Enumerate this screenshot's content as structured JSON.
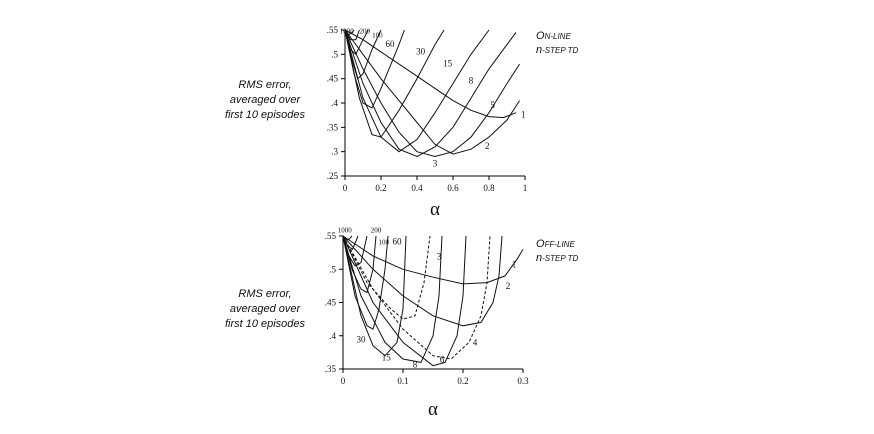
{
  "chart_data": [
    {
      "type": "line",
      "title_lines": [
        [
          "O",
          "N-LINE"
        ],
        [
          "n",
          "-STEP",
          " TD"
        ]
      ],
      "ylabel_lines": [
        "RMS error,",
        "averaged over",
        "first 10 episodes"
      ],
      "xlabel": "α",
      "xlim": [
        0,
        1
      ],
      "ylim": [
        0.25,
        0.55
      ],
      "xticks": [
        "0",
        "0.2",
        "0.4",
        "0.6",
        "0.8",
        "1"
      ],
      "xtick_values": [
        0,
        0.2,
        0.4,
        0.6,
        0.8,
        1
      ],
      "yticks": [
        ".25",
        ".3",
        ".35",
        ".4",
        ".45",
        ".5",
        ".55"
      ],
      "ytick_values": [
        0.25,
        0.3,
        0.35,
        0.4,
        0.45,
        0.5,
        0.55
      ],
      "series": [
        {
          "name": "1",
          "label_at": [
            0.99,
            0.37
          ],
          "points": [
            [
              0,
              0.55
            ],
            [
              0.1,
              0.53
            ],
            [
              0.2,
              0.505
            ],
            [
              0.3,
              0.48
            ],
            [
              0.4,
              0.455
            ],
            [
              0.5,
              0.43
            ],
            [
              0.6,
              0.405
            ],
            [
              0.7,
              0.385
            ],
            [
              0.8,
              0.372
            ],
            [
              0.88,
              0.37
            ],
            [
              0.95,
              0.38
            ]
          ]
        },
        {
          "name": "2",
          "label_at": [
            0.79,
            0.305
          ],
          "points": [
            [
              0,
              0.55
            ],
            [
              0.1,
              0.5
            ],
            [
              0.2,
              0.45
            ],
            [
              0.3,
              0.405
            ],
            [
              0.4,
              0.36
            ],
            [
              0.5,
              0.315
            ],
            [
              0.6,
              0.295
            ],
            [
              0.7,
              0.305
            ],
            [
              0.8,
              0.33
            ],
            [
              0.9,
              0.365
            ],
            [
              0.97,
              0.405
            ]
          ]
        },
        {
          "name": "3",
          "label_at": [
            0.5,
            0.27
          ],
          "points": [
            [
              0,
              0.55
            ],
            [
              0.1,
              0.47
            ],
            [
              0.2,
              0.4
            ],
            [
              0.3,
              0.34
            ],
            [
              0.4,
              0.3
            ],
            [
              0.5,
              0.29
            ],
            [
              0.6,
              0.3
            ],
            [
              0.7,
              0.33
            ],
            [
              0.8,
              0.38
            ],
            [
              0.9,
              0.44
            ],
            [
              0.97,
              0.48
            ]
          ]
        },
        {
          "name": "5",
          "label_at": [
            0.82,
            0.39
          ],
          "points": [
            [
              0,
              0.55
            ],
            [
              0.1,
              0.44
            ],
            [
              0.2,
              0.36
            ],
            [
              0.3,
              0.305
            ],
            [
              0.4,
              0.29
            ],
            [
              0.5,
              0.31
            ],
            [
              0.6,
              0.35
            ],
            [
              0.7,
              0.41
            ],
            [
              0.8,
              0.47
            ],
            [
              0.9,
              0.52
            ],
            [
              0.95,
              0.545
            ]
          ]
        },
        {
          "name": "8",
          "label_at": [
            0.7,
            0.44
          ],
          "points": [
            [
              0,
              0.55
            ],
            [
              0.1,
              0.41
            ],
            [
              0.2,
              0.33
            ],
            [
              0.3,
              0.3
            ],
            [
              0.4,
              0.325
            ],
            [
              0.5,
              0.38
            ],
            [
              0.6,
              0.44
            ],
            [
              0.7,
              0.5
            ],
            [
              0.8,
              0.55
            ]
          ]
        },
        {
          "name": "15",
          "label_at": [
            0.57,
            0.475
          ],
          "points": [
            [
              0,
              0.55
            ],
            [
              0.08,
              0.41
            ],
            [
              0.15,
              0.335
            ],
            [
              0.2,
              0.33
            ],
            [
              0.3,
              0.385
            ],
            [
              0.4,
              0.45
            ],
            [
              0.5,
              0.52
            ],
            [
              0.55,
              0.55
            ]
          ]
        },
        {
          "name": "30",
          "label_at": [
            0.42,
            0.5
          ],
          "points": [
            [
              0,
              0.55
            ],
            [
              0.05,
              0.46
            ],
            [
              0.1,
              0.4
            ],
            [
              0.15,
              0.39
            ],
            [
              0.2,
              0.43
            ],
            [
              0.3,
              0.52
            ],
            [
              0.33,
              0.55
            ]
          ]
        },
        {
          "name": "60",
          "label_at": [
            0.25,
            0.515
          ],
          "points": [
            [
              0,
              0.55
            ],
            [
              0.03,
              0.5
            ],
            [
              0.07,
              0.45
            ],
            [
              0.1,
              0.46
            ],
            [
              0.15,
              0.51
            ],
            [
              0.2,
              0.55
            ]
          ]
        },
        {
          "name": "100",
          "label_at": [
            0.18,
            0.535
          ],
          "points": [
            [
              0,
              0.55
            ],
            [
              0.03,
              0.51
            ],
            [
              0.06,
              0.5
            ],
            [
              0.1,
              0.53
            ],
            [
              0.13,
              0.55
            ]
          ]
        },
        {
          "name": "200",
          "label_at": [
            0.11,
            0.543
          ],
          "points": [
            [
              0,
              0.55
            ],
            [
              0.03,
              0.53
            ],
            [
              0.06,
              0.53
            ],
            [
              0.08,
              0.55
            ]
          ]
        },
        {
          "name": "1000",
          "label_at": [
            0.01,
            0.543
          ],
          "points": [
            [
              0,
              0.55
            ],
            [
              0.02,
              0.54
            ],
            [
              0.04,
              0.545
            ],
            [
              0.05,
              0.55
            ]
          ]
        }
      ]
    },
    {
      "type": "line",
      "title_lines": [
        [
          "O",
          "FF-LINE"
        ],
        [
          "n",
          "-STEP",
          " TD"
        ]
      ],
      "ylabel_lines": [
        "RMS error,",
        "averaged over",
        "first 10 episodes"
      ],
      "xlabel": "α",
      "xlim": [
        0,
        0.3
      ],
      "ylim": [
        0.35,
        0.55
      ],
      "xticks": [
        "0",
        "0.1",
        "0.2",
        "0.3"
      ],
      "xtick_values": [
        0,
        0.1,
        0.2,
        0.3
      ],
      "yticks": [
        ".35",
        ".4",
        ".45",
        ".5",
        ".55"
      ],
      "ytick_values": [
        0.35,
        0.4,
        0.45,
        0.5,
        0.55
      ],
      "series": [
        {
          "name": "1",
          "label_at": [
            0.285,
            0.503
          ],
          "points": [
            [
              0,
              0.55
            ],
            [
              0.05,
              0.52
            ],
            [
              0.1,
              0.5
            ],
            [
              0.15,
              0.488
            ],
            [
              0.2,
              0.478
            ],
            [
              0.24,
              0.48
            ],
            [
              0.27,
              0.49
            ],
            [
              0.29,
              0.515
            ],
            [
              0.3,
              0.53
            ]
          ]
        },
        {
          "name": "2",
          "label_at": [
            0.275,
            0.47
          ],
          "points": [
            [
              0,
              0.55
            ],
            [
              0.05,
              0.5
            ],
            [
              0.1,
              0.46
            ],
            [
              0.15,
              0.43
            ],
            [
              0.2,
              0.415
            ],
            [
              0.23,
              0.42
            ],
            [
              0.25,
              0.45
            ],
            [
              0.26,
              0.49
            ],
            [
              0.265,
              0.55
            ]
          ]
        },
        {
          "name": "4",
          "label_at": [
            0.22,
            0.385
          ],
          "dashed": true,
          "points": [
            [
              0,
              0.55
            ],
            [
              0.05,
              0.47
            ],
            [
              0.1,
              0.41
            ],
            [
              0.15,
              0.37
            ],
            [
              0.18,
              0.365
            ],
            [
              0.21,
              0.39
            ],
            [
              0.23,
              0.43
            ],
            [
              0.24,
              0.48
            ],
            [
              0.245,
              0.55
            ]
          ]
        },
        {
          "name": "6",
          "label_at": [
            0.165,
            0.36
          ],
          "points": [
            [
              0,
              0.55
            ],
            [
              0.05,
              0.45
            ],
            [
              0.1,
              0.39
            ],
            [
              0.15,
              0.355
            ],
            [
              0.17,
              0.36
            ],
            [
              0.19,
              0.4
            ],
            [
              0.2,
              0.46
            ],
            [
              0.205,
              0.55
            ]
          ]
        },
        {
          "name": "8",
          "label_at": [
            0.12,
            0.352
          ],
          "points": [
            [
              0,
              0.55
            ],
            [
              0.03,
              0.46
            ],
            [
              0.07,
              0.39
            ],
            [
              0.1,
              0.365
            ],
            [
              0.13,
              0.36
            ],
            [
              0.15,
              0.4
            ],
            [
              0.16,
              0.46
            ],
            [
              0.165,
              0.55
            ]
          ]
        },
        {
          "name": "3",
          "label_at": [
            0.16,
            0.515
          ],
          "dashed": true,
          "points": [
            [
              0,
              0.55
            ],
            [
              0.04,
              0.48
            ],
            [
              0.08,
              0.44
            ],
            [
              0.1,
              0.425
            ],
            [
              0.12,
              0.43
            ],
            [
              0.135,
              0.48
            ],
            [
              0.145,
              0.55
            ]
          ]
        },
        {
          "name": "15",
          "label_at": [
            0.072,
            0.363
          ],
          "points": [
            [
              0,
              0.55
            ],
            [
              0.03,
              0.43
            ],
            [
              0.05,
              0.385
            ],
            [
              0.07,
              0.37
            ],
            [
              0.09,
              0.39
            ],
            [
              0.1,
              0.44
            ],
            [
              0.105,
              0.55
            ]
          ]
        },
        {
          "name": "30",
          "label_at": [
            0.03,
            0.39
          ],
          "points": [
            [
              0,
              0.55
            ],
            [
              0.02,
              0.46
            ],
            [
              0.04,
              0.415
            ],
            [
              0.05,
              0.41
            ],
            [
              0.06,
              0.44
            ],
            [
              0.07,
              0.5
            ],
            [
              0.075,
              0.55
            ]
          ]
        },
        {
          "name": "60",
          "label_at": [
            0.09,
            0.537
          ],
          "points": [
            [
              0,
              0.55
            ],
            [
              0.015,
              0.5
            ],
            [
              0.03,
              0.47
            ],
            [
              0.04,
              0.465
            ],
            [
              0.05,
              0.5
            ],
            [
              0.055,
              0.55
            ]
          ]
        },
        {
          "name": "100",
          "label_at": [
            0.068,
            0.537
          ],
          "points": [
            [
              0,
              0.55
            ],
            [
              0.01,
              0.52
            ],
            [
              0.02,
              0.505
            ],
            [
              0.03,
              0.51
            ],
            [
              0.04,
              0.55
            ]
          ]
        },
        {
          "name": "200",
          "label_at": [
            0.055,
            0.555
          ],
          "points": [
            [
              0,
              0.55
            ],
            [
              0.008,
              0.535
            ],
            [
              0.016,
              0.53
            ],
            [
              0.025,
              0.55
            ]
          ]
        },
        {
          "name": "1000",
          "label_at": [
            0.003,
            0.555
          ],
          "points": [
            [
              0,
              0.55
            ],
            [
              0.005,
              0.545
            ],
            [
              0.01,
              0.545
            ],
            [
              0.015,
              0.55
            ]
          ]
        }
      ]
    }
  ]
}
